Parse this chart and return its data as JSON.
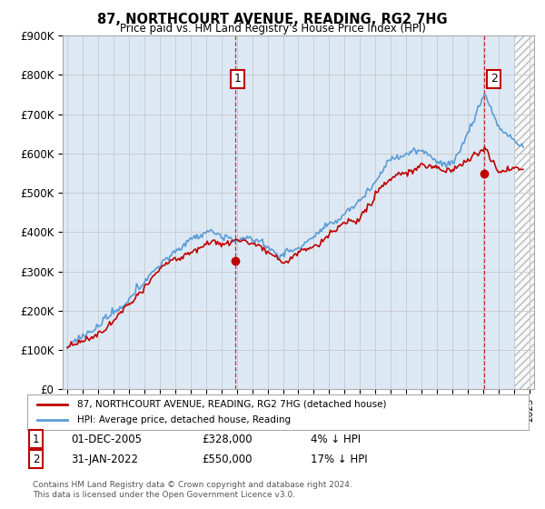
{
  "title": "87, NORTHCOURT AVENUE, READING, RG2 7HG",
  "subtitle": "Price paid vs. HM Land Registry's House Price Index (HPI)",
  "ylim": [
    0,
    900000
  ],
  "yticks": [
    0,
    100000,
    200000,
    300000,
    400000,
    500000,
    600000,
    700000,
    800000,
    900000
  ],
  "ytick_labels": [
    "£0",
    "£100K",
    "£200K",
    "£300K",
    "£400K",
    "£500K",
    "£600K",
    "£700K",
    "£800K",
    "£900K"
  ],
  "hpi_color": "#5b9bd5",
  "price_color": "#c00000",
  "fill_color": "#dce9f5",
  "sale1_x": 2005.917,
  "sale1_y": 328000,
  "sale2_x": 2022.083,
  "sale2_y": 550000,
  "legend_price_label": "87, NORTHCOURT AVENUE, READING, RG2 7HG (detached house)",
  "legend_hpi_label": "HPI: Average price, detached house, Reading",
  "footnote": "Contains HM Land Registry data © Crown copyright and database right 2024.\nThis data is licensed under the Open Government Licence v3.0.",
  "background_color": "#ffffff",
  "grid_color": "#cccccc",
  "xmin": 1995,
  "xmax": 2025
}
